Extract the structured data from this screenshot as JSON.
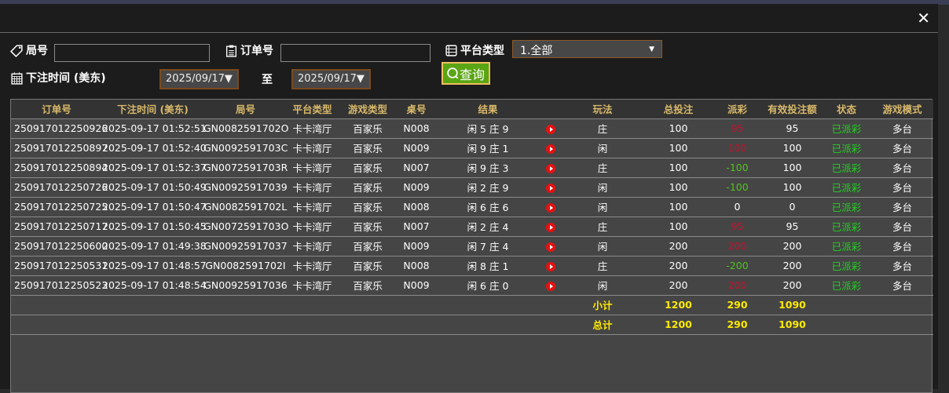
{
  "filters": {
    "round_label": "局号",
    "order_label": "订单号",
    "platform_label": "平台类型",
    "platform_value": "1.全部",
    "time_label": "下注时间 (美东)",
    "date_from": "2025/09/17▼",
    "to_label": "至",
    "date_to": "2025/09/17▼",
    "query_button": "查询"
  },
  "colors": {
    "payout_positive": "#c8102e",
    "payout_negative": "#4fc61a",
    "status": "#22d022",
    "header": "#d9b96a",
    "summary": "#ffea00"
  },
  "columns": [
    "订单号",
    "下注时间 (美东)",
    "局号",
    "平台类型",
    "游戏类型",
    "桌号",
    "结果",
    "",
    "玩法",
    "总投注",
    "派彩",
    "有效投注额",
    "状态",
    "游戏模式"
  ],
  "rows": [
    [
      "250917012250926",
      "2025-09-17 01:52:51",
      "GN0082591702O",
      "卡卡湾厅",
      "百家乐",
      "N008",
      "闲 5 庄 9",
      "庄",
      "100",
      "95",
      "95",
      "已派彩",
      "多台"
    ],
    [
      "250917012250897",
      "2025-09-17 01:52:40",
      "GN0092591703C",
      "卡卡湾厅",
      "百家乐",
      "N009",
      "闲 9 庄 1",
      "闲",
      "100",
      "100",
      "100",
      "已派彩",
      "多台"
    ],
    [
      "250917012250894",
      "2025-09-17 01:52:37",
      "GN0072591703R",
      "卡卡湾厅",
      "百家乐",
      "N007",
      "闲 9 庄 3",
      "庄",
      "100",
      "-100",
      "100",
      "已派彩",
      "多台"
    ],
    [
      "250917012250726",
      "2025-09-17 01:50:49",
      "GN00925917039",
      "卡卡湾厅",
      "百家乐",
      "N009",
      "闲 2 庄 9",
      "闲",
      "100",
      "-100",
      "100",
      "已派彩",
      "多台"
    ],
    [
      "250917012250725",
      "2025-09-17 01:50:47",
      "GN0082591702L",
      "卡卡湾厅",
      "百家乐",
      "N008",
      "闲 6 庄 6",
      "闲",
      "100",
      "0",
      "0",
      "已派彩",
      "多台"
    ],
    [
      "250917012250717",
      "2025-09-17 01:50:45",
      "GN0072591703O",
      "卡卡湾厅",
      "百家乐",
      "N007",
      "闲 2 庄 4",
      "庄",
      "100",
      "95",
      "95",
      "已派彩",
      "多台"
    ],
    [
      "250917012250600",
      "2025-09-17 01:49:38",
      "GN00925917037",
      "卡卡湾厅",
      "百家乐",
      "N009",
      "闲 7 庄 4",
      "闲",
      "200",
      "200",
      "200",
      "已派彩",
      "多台"
    ],
    [
      "250917012250531",
      "2025-09-17 01:48:57",
      "GN0082591702I",
      "卡卡湾厅",
      "百家乐",
      "N008",
      "闲 8 庄 1",
      "庄",
      "200",
      "-200",
      "200",
      "已派彩",
      "多台"
    ],
    [
      "250917012250523",
      "2025-09-17 01:48:54",
      "GN00925917036",
      "卡卡湾厅",
      "百家乐",
      "N009",
      "闲 6 庄 0",
      "闲",
      "200",
      "200",
      "200",
      "已派彩",
      "多台"
    ]
  ],
  "subtotal": {
    "label": "小计",
    "total_bet": "1200",
    "payout": "290",
    "valid_bet": "1090"
  },
  "total": {
    "label": "总计",
    "total_bet": "1200",
    "payout": "290",
    "valid_bet": "1090"
  },
  "icons": {
    "close": "close-icon",
    "round": "tag-icon",
    "order": "clipboard-icon",
    "platform": "list-icon",
    "time": "calendar-icon",
    "query": "search-icon",
    "replay": "play-icon"
  }
}
